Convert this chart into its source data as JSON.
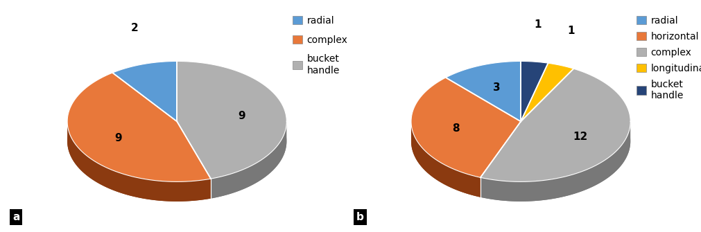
{
  "chart_a": {
    "values": [
      2,
      9,
      9
    ],
    "colors": [
      "#5B9BD5",
      "#E8783A",
      "#B0B0B0"
    ],
    "shadow_colors": [
      "#3A6A9A",
      "#8B3A10",
      "#787878"
    ],
    "text_labels": [
      "2",
      "9",
      "9"
    ],
    "label_outside": [
      true,
      false,
      false
    ],
    "startangle": 90,
    "legend_labels": [
      "radial",
      "complex",
      "bucket\nhandle"
    ],
    "legend_colors": [
      "#5B9BD5",
      "#E8783A",
      "#B0B0B0"
    ]
  },
  "chart_b": {
    "values": [
      3,
      8,
      12,
      1,
      1
    ],
    "colors": [
      "#5B9BD5",
      "#E8783A",
      "#B0B0B0",
      "#FFC000",
      "#264478"
    ],
    "shadow_colors": [
      "#3A6A9A",
      "#8B3A10",
      "#787878",
      "#A07800",
      "#0D1F40"
    ],
    "text_labels": [
      "3",
      "8",
      "12",
      "1",
      "1"
    ],
    "label_outside": [
      false,
      false,
      false,
      true,
      true
    ],
    "startangle": 90,
    "legend_labels": [
      "radial",
      "horizontal",
      "complex",
      "longitudinal",
      "bucket\nhandle"
    ],
    "legend_colors": [
      "#5B9BD5",
      "#E8783A",
      "#B0B0B0",
      "#FFC000",
      "#264478"
    ]
  },
  "background_color": "#FFFFFF",
  "label_fontsize": 11,
  "legend_fontsize": 10,
  "yscale": 0.55,
  "depth": 0.18
}
